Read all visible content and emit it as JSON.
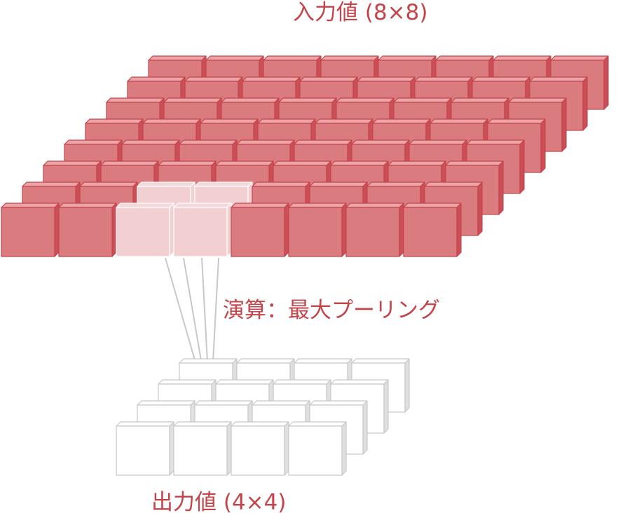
{
  "labels": {
    "input": "入力値 (8×8)",
    "operation": "演算：最大プーリング",
    "output": "出力値 (4×4)"
  },
  "input_grid": {
    "rows": 8,
    "cols": 8,
    "highlighted_cells": [
      [
        0,
        2
      ],
      [
        0,
        3
      ],
      [
        1,
        2
      ],
      [
        1,
        3
      ]
    ]
  },
  "output_grid": {
    "rows": 4,
    "cols": 4,
    "target_cell": [
      0,
      0
    ]
  },
  "colors": {
    "input_front": "#d97b7f",
    "input_top": "#e9a5a8",
    "input_side": "#ca4f57",
    "input_edge": "#c4444a",
    "highlight_front": "#f2d0d1",
    "highlight_top": "#f5d9da",
    "highlight_edge": "#ffffff",
    "output_front": "#ffffff",
    "output_top": "#ffffff",
    "output_side": "#e0e0e0",
    "output_edge": "#c8c8c8",
    "connector": "#c8c8c8",
    "text": "#c4444a"
  }
}
